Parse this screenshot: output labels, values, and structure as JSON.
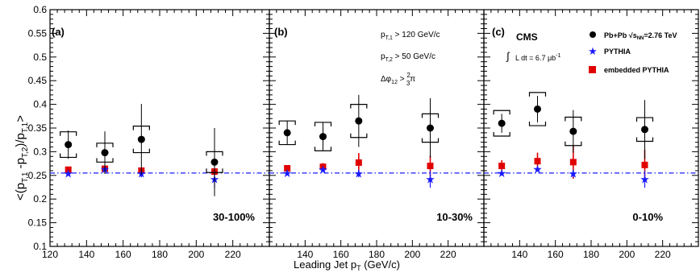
{
  "chart_data": [
    {
      "type": "scatter",
      "panel_label": "(a)",
      "centrality_label": "30-100%",
      "ylabel": "<(p_T,1 - p_T,2)/p_T,1>",
      "xlabel": "Leading Jet p_T (GeV/c)",
      "x_ticks": [
        "120",
        "140",
        "160",
        "180",
        "200",
        "220"
      ],
      "y_ticks": [
        "0.1",
        "0.15",
        "0.2",
        "0.25",
        "0.3",
        "0.35",
        "0.4",
        "0.45",
        "0.5",
        "0.55",
        "0.6"
      ],
      "xlim": [
        120,
        240
      ],
      "ylim": [
        0.1,
        0.6
      ],
      "reference_line_y": 0.255,
      "series": [
        {
          "name": "Pb+Pb",
          "x": [
            130,
            150,
            170,
            210
          ],
          "y": [
            0.315,
            0.298,
            0.326,
            0.278
          ],
          "stat_err": [
            0.03,
            0.045,
            0.075,
            0.072
          ],
          "sys_err": [
            0.027,
            0.02,
            0.028,
            0.022
          ]
        },
        {
          "name": "PYTHIA",
          "x": [
            130,
            150,
            170,
            210
          ],
          "y": [
            0.254,
            0.263,
            0.254,
            0.242
          ],
          "err": [
            0.004,
            0.005,
            0.008,
            0.018
          ]
        },
        {
          "name": "embedded PYTHIA",
          "x": [
            130,
            150,
            170,
            210
          ],
          "y": [
            0.262,
            0.264,
            0.26,
            0.258
          ],
          "err": [
            0.004,
            0.004,
            0.005,
            0.006
          ]
        }
      ]
    },
    {
      "type": "scatter",
      "panel_label": "(b)",
      "centrality_label": "10-30%",
      "cuts": {
        "pt1": "p_T,1 > 120 GeV/c",
        "pt2": "p_T,2 > 50 GeV/c",
        "dphi": "Δφ_12 > 2/3 π"
      },
      "x_ticks": [
        "140",
        "160",
        "180",
        "200",
        "220"
      ],
      "xlim": [
        120,
        240
      ],
      "ylim": [
        0.1,
        0.6
      ],
      "reference_line_y": 0.255,
      "series": [
        {
          "name": "Pb+Pb",
          "x": [
            130,
            150,
            170,
            210
          ],
          "y": [
            0.34,
            0.332,
            0.365,
            0.35
          ],
          "stat_err": [
            0.025,
            0.03,
            0.055,
            0.063
          ],
          "sys_err": [
            0.025,
            0.03,
            0.035,
            0.03
          ]
        },
        {
          "name": "PYTHIA",
          "x": [
            130,
            150,
            170,
            210
          ],
          "y": [
            0.255,
            0.262,
            0.254,
            0.242
          ],
          "err": [
            0.004,
            0.005,
            0.008,
            0.018
          ]
        },
        {
          "name": "embedded PYTHIA",
          "x": [
            130,
            150,
            170,
            210
          ],
          "y": [
            0.265,
            0.268,
            0.277,
            0.27
          ],
          "err": [
            0.005,
            0.008,
            0.02,
            0.022
          ]
        }
      ]
    },
    {
      "type": "scatter",
      "panel_label": "(c)",
      "centrality_label": "0-10%",
      "experiment": "CMS",
      "luminosity": "∫L dt = 6.7 μb⁻¹",
      "legend": [
        "Pb+Pb √s_NN=2.76 TeV",
        "PYTHIA",
        "embedded PYTHIA"
      ],
      "x_ticks": [
        "140",
        "160",
        "180",
        "200",
        "220"
      ],
      "xlim": [
        120,
        240
      ],
      "ylim": [
        0.1,
        0.6
      ],
      "reference_line_y": 0.255,
      "series": [
        {
          "name": "Pb+Pb",
          "x": [
            130,
            150,
            170,
            210
          ],
          "y": [
            0.36,
            0.39,
            0.343,
            0.347
          ],
          "stat_err": [
            0.02,
            0.028,
            0.045,
            0.062
          ],
          "sys_err": [
            0.027,
            0.035,
            0.03,
            0.025
          ]
        },
        {
          "name": "PYTHIA",
          "x": [
            130,
            150,
            170,
            210
          ],
          "y": [
            0.255,
            0.263,
            0.254,
            0.242
          ],
          "err": [
            0.004,
            0.005,
            0.008,
            0.018
          ]
        },
        {
          "name": "embedded PYTHIA",
          "x": [
            130,
            150,
            170,
            210
          ],
          "y": [
            0.27,
            0.28,
            0.278,
            0.272
          ],
          "err": [
            0.012,
            0.018,
            0.035,
            0.032
          ]
        }
      ]
    }
  ],
  "colors": {
    "pbpb": "#000000",
    "pythia": "#1a1aff",
    "embedded": "#e00000",
    "reference_line": "#1a1aff"
  }
}
